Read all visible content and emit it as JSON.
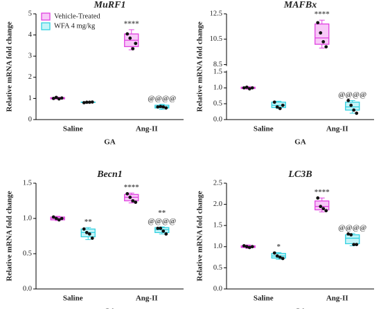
{
  "chart_data": [
    {
      "type": "box",
      "title": "MuRF1",
      "ylabel": "Relative mRNA fold change",
      "xlabel": "GA",
      "categories": [
        "Saline",
        "Ang-II"
      ],
      "ylim": [
        0,
        5
      ],
      "yticks": [
        0,
        1,
        2,
        3,
        4,
        5
      ],
      "legend": "upper left",
      "series": [
        {
          "name": "Vehicle-Treated",
          "color": "#e040e0",
          "fill": "#f8c8f8",
          "values": [
            {
              "min": 0.97,
              "q1": 0.98,
              "median": 1.0,
              "q3": 1.04,
              "max": 1.06,
              "points": [
                1.0,
                1.05,
                0.98,
                1.02
              ]
            },
            {
              "min": 3.3,
              "q1": 3.45,
              "median": 3.75,
              "q3": 4.05,
              "max": 4.25,
              "points": [
                4.05,
                3.85,
                3.35,
                3.6
              ]
            }
          ],
          "annotations": [
            [],
            [
              "****"
            ]
          ]
        },
        {
          "name": "WFA 4 mg/kg",
          "color": "#30d0e0",
          "fill": "#c4f4f8",
          "values": [
            {
              "min": 0.8,
              "q1": 0.81,
              "median": 0.82,
              "q3": 0.83,
              "max": 0.84,
              "points": [
                0.8,
                0.82,
                0.82,
                0.83
              ]
            },
            {
              "min": 0.48,
              "q1": 0.55,
              "median": 0.6,
              "q3": 0.68,
              "max": 0.72,
              "points": [
                0.6,
                0.62,
                0.6,
                0.55
              ]
            }
          ],
          "annotations": [
            [],
            [
              "@@@@"
            ]
          ]
        }
      ]
    },
    {
      "type": "box",
      "title": "MAFBx",
      "ylabel": "Relative mRNA fold change",
      "xlabel": "GA",
      "categories": [
        "Saline",
        "Ang-II"
      ],
      "ylim": [
        0,
        12.5
      ],
      "ybreak": [
        1.5,
        8.5
      ],
      "yticks": [
        {
          "value": 0,
          "label": "0.0"
        },
        0.5,
        {
          "value": 1,
          "label": "1.0"
        },
        1.5,
        8.5,
        10.5,
        12.5
      ],
      "series": [
        {
          "color": "#e040e0",
          "fill": "#f8c8f8",
          "values": [
            {
              "min": 0.96,
              "q1": 0.98,
              "median": 1.0,
              "q3": 1.02,
              "max": 1.04,
              "points": [
                1.0,
                1.02,
                0.97,
                1.0
              ]
            },
            {
              "min": 9.8,
              "q1": 10.1,
              "median": 10.6,
              "q3": 11.7,
              "max": 12.0,
              "points": [
                11.8,
                11.0,
                10.3,
                9.9
              ]
            }
          ],
          "annotations": [
            [],
            [
              "****"
            ]
          ]
        },
        {
          "color": "#30d0e0",
          "fill": "#c4f4f8",
          "values": [
            {
              "min": 0.35,
              "q1": 0.38,
              "median": 0.45,
              "q3": 0.55,
              "max": 0.58,
              "points": [
                0.55,
                0.4,
                0.35,
                0.45
              ]
            },
            {
              "min": 0.2,
              "q1": 0.3,
              "median": 0.4,
              "q3": 0.55,
              "max": 0.6,
              "points": [
                0.6,
                0.45,
                0.3,
                0.2
              ]
            }
          ],
          "annotations": [
            [],
            [
              "@@@@"
            ]
          ]
        }
      ]
    },
    {
      "type": "box",
      "title": "Becn1",
      "ylabel": "Relative mRNA fold change",
      "xlabel": "GA",
      "categories": [
        "Saline",
        "Ang-II"
      ],
      "ylim": [
        0,
        1.5
      ],
      "yticks": [
        {
          "value": 0,
          "label": "0.0"
        },
        0.5,
        {
          "value": 1,
          "label": "1.0"
        },
        1.5
      ],
      "series": [
        {
          "color": "#e040e0",
          "fill": "#f8c8f8",
          "values": [
            {
              "min": 0.97,
              "q1": 0.98,
              "median": 1.0,
              "q3": 1.02,
              "max": 1.03,
              "points": [
                1.02,
                1.0,
                0.98,
                1.0
              ]
            },
            {
              "min": 1.22,
              "q1": 1.25,
              "median": 1.3,
              "q3": 1.34,
              "max": 1.36,
              "points": [
                1.35,
                1.3,
                1.25,
                1.23
              ]
            }
          ],
          "annotations": [
            [],
            [
              "****"
            ]
          ]
        },
        {
          "color": "#30d0e0",
          "fill": "#c4f4f8",
          "values": [
            {
              "min": 0.7,
              "q1": 0.74,
              "median": 0.8,
              "q3": 0.85,
              "max": 0.87,
              "points": [
                0.85,
                0.8,
                0.78,
                0.72
              ]
            },
            {
              "min": 0.78,
              "q1": 0.8,
              "median": 0.84,
              "q3": 0.87,
              "max": 0.88,
              "points": [
                0.86,
                0.86,
                0.82,
                0.78
              ]
            }
          ],
          "annotations": [
            [
              "**"
            ],
            [
              "**",
              "@@@@"
            ]
          ]
        }
      ]
    },
    {
      "type": "box",
      "title": "LC3B",
      "ylabel": "Relative mRNA fold change",
      "xlabel": "GA",
      "categories": [
        "Saline",
        "Ang-II"
      ],
      "ylim": [
        0,
        2.5
      ],
      "yticks": [
        {
          "value": 0,
          "label": "0.0"
        },
        0.5,
        {
          "value": 1,
          "label": "1.0"
        },
        1.5,
        {
          "value": 2,
          "label": "2.0"
        },
        2.5
      ],
      "series": [
        {
          "color": "#e040e0",
          "fill": "#f8c8f8",
          "values": [
            {
              "min": 0.96,
              "q1": 0.98,
              "median": 1.0,
              "q3": 1.02,
              "max": 1.04,
              "points": [
                1.02,
                1.0,
                0.98,
                1.0
              ]
            },
            {
              "min": 1.82,
              "q1": 1.87,
              "median": 1.95,
              "q3": 2.08,
              "max": 2.15,
              "points": [
                2.15,
                1.95,
                1.9,
                1.85
              ]
            }
          ],
          "annotations": [
            [],
            [
              "****"
            ]
          ]
        },
        {
          "color": "#30d0e0",
          "fill": "#c4f4f8",
          "values": [
            {
              "min": 0.7,
              "q1": 0.73,
              "median": 0.78,
              "q3": 0.84,
              "max": 0.86,
              "points": [
                0.85,
                0.78,
                0.75,
                0.72
              ]
            },
            {
              "min": 1.02,
              "q1": 1.07,
              "median": 1.2,
              "q3": 1.28,
              "max": 1.31,
              "points": [
                1.3,
                1.28,
                1.05,
                1.05
              ]
            }
          ],
          "annotations": [
            [
              "*"
            ],
            [
              "@@@@"
            ]
          ]
        }
      ]
    }
  ]
}
